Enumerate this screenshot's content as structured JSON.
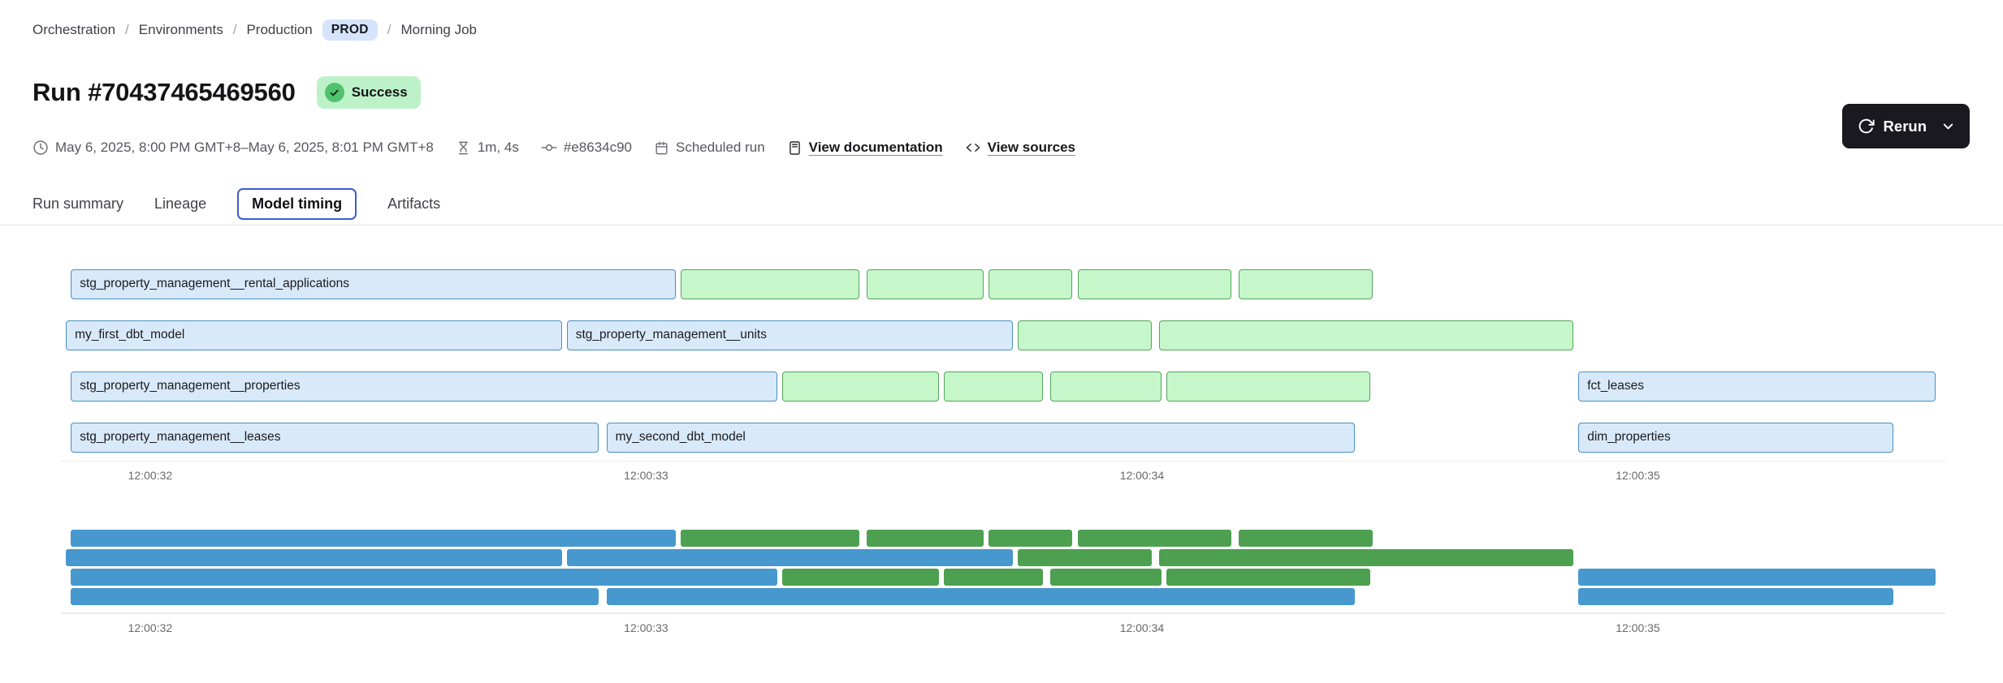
{
  "breadcrumb": {
    "separator": "/",
    "items": [
      "Orchestration",
      "Environments",
      "Production",
      "Morning Job"
    ],
    "env_badge": "PROD"
  },
  "header": {
    "title": "Run #70437465469560",
    "status": "Success"
  },
  "meta": {
    "time_range": "May 6, 2025, 8:00 PM GMT+8–May 6, 2025, 8:01 PM GMT+8",
    "duration": "1m, 4s",
    "commit": "#e8634c90",
    "trigger": "Scheduled run",
    "documentation_link": "View documentation",
    "sources_link": "View sources"
  },
  "toolbar": {
    "rerun_label": "Rerun"
  },
  "tabs": [
    {
      "label": "Run summary",
      "active": false
    },
    {
      "label": "Lineage",
      "active": false
    },
    {
      "label": "Model timing",
      "active": true
    },
    {
      "label": "Artifacts",
      "active": false
    }
  ],
  "colors": {
    "bar_blue_fill": "#d8e9f9",
    "bar_blue_border": "#4b8fc0",
    "bar_green_fill": "#c5f7cb",
    "bar_green_border": "#57a35c",
    "mini_blue": "#4698ce",
    "mini_green": "#4ca050",
    "status_green": "#50c16c",
    "badge_blue": "#d6e4fb",
    "active_tab_border": "#3c5ccf"
  },
  "chart_data": {
    "type": "gantt",
    "title": "Model timing",
    "x_unit": "seconds after 12:00:00",
    "domain": {
      "start": 31.82,
      "end": 35.62
    },
    "ticks": [
      {
        "t": 32,
        "label": "12:00:32"
      },
      {
        "t": 33,
        "label": "12:00:33"
      },
      {
        "t": 34,
        "label": "12:00:34"
      },
      {
        "t": 35,
        "label": "12:00:35"
      }
    ],
    "rows": [
      {
        "segments": [
          {
            "label": "stg_property_management__rental_applications",
            "type": "blue",
            "start": 31.84,
            "end": 33.06
          },
          {
            "label": "",
            "type": "green",
            "start": 33.07,
            "end": 33.43
          },
          {
            "label": "",
            "type": "green",
            "start": 33.445,
            "end": 33.68
          },
          {
            "label": "",
            "type": "green",
            "start": 33.69,
            "end": 33.86
          },
          {
            "label": "",
            "type": "green",
            "start": 33.87,
            "end": 34.18
          },
          {
            "label": "",
            "type": "green",
            "start": 34.195,
            "end": 34.465
          }
        ]
      },
      {
        "segments": [
          {
            "label": "my_first_dbt_model",
            "type": "blue",
            "start": 31.83,
            "end": 32.83
          },
          {
            "label": "stg_property_management__units",
            "type": "blue",
            "start": 32.84,
            "end": 33.74
          },
          {
            "label": "",
            "type": "green",
            "start": 33.75,
            "end": 34.02
          },
          {
            "label": "",
            "type": "green",
            "start": 34.035,
            "end": 34.87
          }
        ]
      },
      {
        "segments": [
          {
            "label": "stg_property_management__properties",
            "type": "blue",
            "start": 31.84,
            "end": 33.265
          },
          {
            "label": "",
            "type": "green",
            "start": 33.275,
            "end": 33.59
          },
          {
            "label": "",
            "type": "green",
            "start": 33.6,
            "end": 33.8
          },
          {
            "label": "",
            "type": "green",
            "start": 33.815,
            "end": 34.04
          },
          {
            "label": "",
            "type": "green",
            "start": 34.05,
            "end": 34.46
          },
          {
            "label": "fct_leases",
            "type": "blue",
            "start": 34.88,
            "end": 35.6
          }
        ]
      },
      {
        "segments": [
          {
            "label": "stg_property_management__leases",
            "type": "blue",
            "start": 31.84,
            "end": 32.905
          },
          {
            "label": "my_second_dbt_model",
            "type": "blue",
            "start": 32.92,
            "end": 34.43
          },
          {
            "label": "dim_properties",
            "type": "blue",
            "start": 34.88,
            "end": 35.515
          }
        ]
      }
    ]
  }
}
